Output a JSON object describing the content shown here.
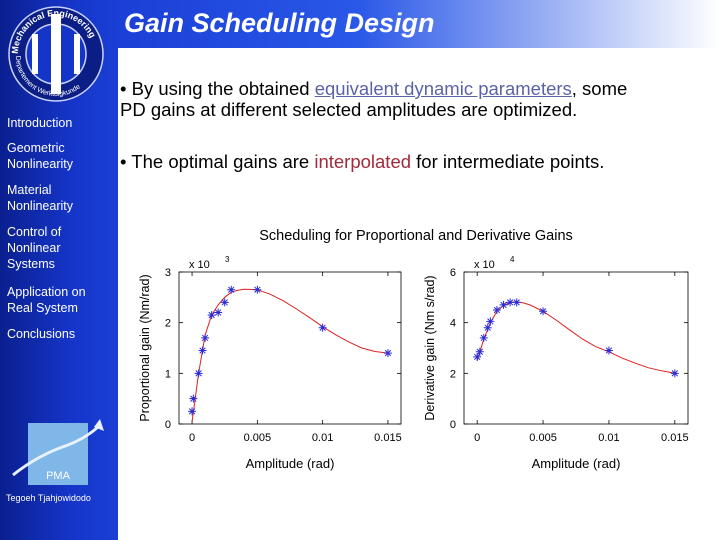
{
  "slide": {
    "title": "Gain Scheduling Design",
    "author": "Tegoeh Tjahjowidodo",
    "logo_text_top": "Mechanical Engineering",
    "logo_text_bottom": "Departement Werktuigkunde",
    "pma_label": "PMA"
  },
  "nav": [
    "Introduction",
    "Geometric\n Nonlinearity",
    "Material\n Nonlinearity",
    "Control of\n Nonlinear\n Systems",
    "Application on\n Real System",
    "Conclusions"
  ],
  "bullets": {
    "b1_pre": "By using the obtained ",
    "b1_link": "equivalent dynamic parameters",
    "b1_post": ", some\nPD gains at different selected amplitudes are optimized.",
    "b2_pre": "The optimal gains are ",
    "b2_hl": "interpolated",
    "b2_post": " for intermediate points.",
    "marker": "•"
  },
  "colors": {
    "sidebar": "#1535c8",
    "curve": "#e02020",
    "markers": "#2a2ad8",
    "link": "#5b63a8",
    "highlight": "#a32a3a"
  },
  "chart_data": [
    {
      "type": "scatter",
      "title": "Scheduling for Proportional and Derivative Gains",
      "xlabel": "Amplitude (rad)",
      "ylabel": "Proportional gain (Nm/rad)",
      "y_multiplier": "x 10",
      "y_exponent": "3",
      "xlim": [
        -0.001,
        0.016
      ],
      "ylim": [
        0,
        3
      ],
      "xticks": [
        0,
        0.005,
        0.01,
        0.015
      ],
      "xtick_labels": [
        "0",
        "0.005",
        "0.01",
        "0.015"
      ],
      "yticks": [
        0,
        1,
        2,
        3
      ],
      "ytick_labels": [
        "0",
        "1",
        "2",
        "3"
      ],
      "series": [
        {
          "style": "markers",
          "x": [
            0,
            0.0001,
            0.0005,
            0.0008,
            0.001,
            0.0015,
            0.002,
            0.0025,
            0.003,
            0.005,
            0.01,
            0.015
          ],
          "y": [
            0.25,
            0.5,
            1.0,
            1.45,
            1.7,
            2.15,
            2.2,
            2.4,
            2.65,
            2.65,
            1.9,
            1.4
          ]
        },
        {
          "style": "line",
          "x": [
            0,
            0.0005,
            0.001,
            0.0015,
            0.002,
            0.0025,
            0.003,
            0.0035,
            0.004,
            0.005,
            0.006,
            0.007,
            0.008,
            0.009,
            0.01,
            0.011,
            0.012,
            0.013,
            0.014,
            0.015
          ],
          "y": [
            0.05,
            1.0,
            1.75,
            2.15,
            2.35,
            2.5,
            2.6,
            2.64,
            2.66,
            2.65,
            2.56,
            2.43,
            2.27,
            2.1,
            1.92,
            1.76,
            1.62,
            1.5,
            1.43,
            1.4
          ]
        }
      ]
    },
    {
      "type": "scatter",
      "xlabel": "Amplitude (rad)",
      "ylabel": "Derivative gain (Nm s/rad)",
      "y_multiplier": "x 10",
      "y_exponent": "4",
      "xlim": [
        -0.001,
        0.016
      ],
      "ylim": [
        0,
        6
      ],
      "xticks": [
        0,
        0.005,
        0.01,
        0.015
      ],
      "xtick_labels": [
        "0",
        "0.005",
        "0.01",
        "0.015"
      ],
      "yticks": [
        0,
        2,
        4,
        6
      ],
      "ytick_labels": [
        "0",
        "2",
        "4",
        "6"
      ],
      "series": [
        {
          "style": "markers",
          "x": [
            0,
            0.0002,
            0.0005,
            0.0008,
            0.001,
            0.0015,
            0.002,
            0.0025,
            0.003,
            0.005,
            0.01,
            0.015
          ],
          "y": [
            2.65,
            2.85,
            3.4,
            3.8,
            4.05,
            4.5,
            4.7,
            4.8,
            4.8,
            4.45,
            2.9,
            2.0
          ]
        },
        {
          "style": "line",
          "x": [
            0,
            0.0005,
            0.001,
            0.0015,
            0.002,
            0.0025,
            0.003,
            0.0035,
            0.004,
            0.005,
            0.006,
            0.007,
            0.008,
            0.009,
            0.01,
            0.011,
            0.012,
            0.013,
            0.014,
            0.015
          ],
          "y": [
            2.5,
            3.35,
            4.0,
            4.45,
            4.68,
            4.8,
            4.82,
            4.78,
            4.7,
            4.45,
            4.1,
            3.72,
            3.35,
            3.05,
            2.85,
            2.6,
            2.4,
            2.22,
            2.1,
            2.0
          ]
        }
      ]
    }
  ]
}
